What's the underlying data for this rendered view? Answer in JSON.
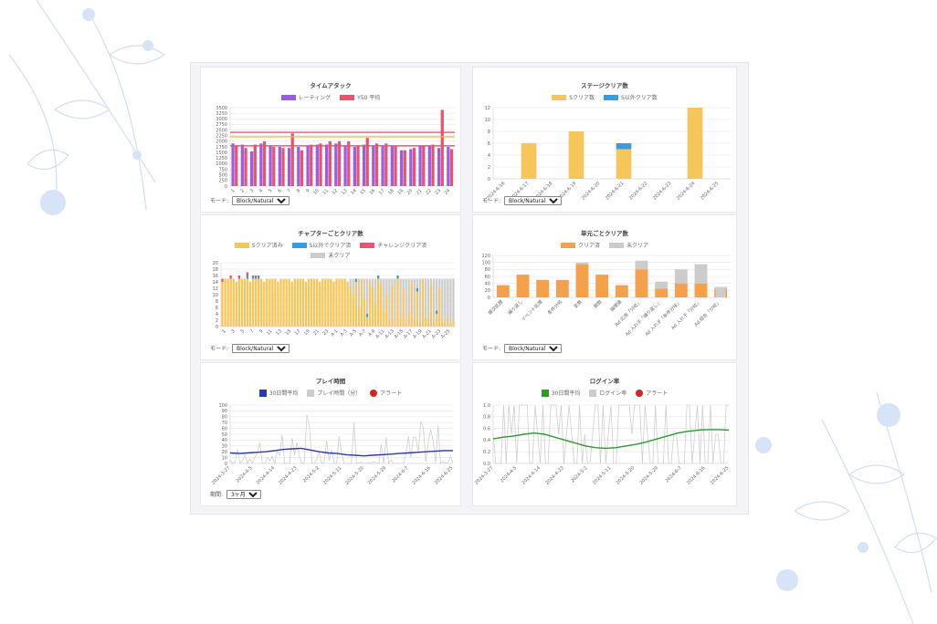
{
  "chart_data": [
    {
      "id": "time-attack",
      "type": "bar",
      "title": "タイムアタック",
      "legend": [
        {
          "name": "レーティング",
          "color": "#9b5de5"
        },
        {
          "name": "Y50 平均",
          "color": "#e8536e"
        }
      ],
      "categories": [
        "1",
        "2",
        "3",
        "4",
        "5",
        "6",
        "7",
        "8",
        "9",
        "10",
        "11",
        "12",
        "13",
        "14",
        "15",
        "16",
        "17",
        "18",
        "19",
        "20",
        "21",
        "22",
        "23",
        "24"
      ],
      "series": [
        {
          "name": "レーティング",
          "values": [
            1900,
            1850,
            1550,
            1900,
            1800,
            1750,
            1700,
            1750,
            1800,
            1850,
            1850,
            1900,
            1800,
            1750,
            1850,
            1800,
            1800,
            1800,
            1600,
            1650,
            1800,
            1800,
            1700,
            1750
          ]
        },
        {
          "name": "Y50 平均",
          "values": [
            1800,
            1700,
            1850,
            2000,
            1750,
            1700,
            2350,
            1600,
            1850,
            1900,
            2000,
            2000,
            2000,
            1800,
            2150,
            1900,
            1900,
            1800,
            1600,
            1700,
            1800,
            1850,
            3400,
            1650
          ]
        }
      ],
      "reference_lines": [
        2400,
        2200,
        1800
      ],
      "ylim": [
        0,
        3500
      ],
      "yticks": [
        0,
        250,
        500,
        750,
        1000,
        1250,
        1500,
        1750,
        2000,
        2250,
        2500,
        2750,
        3000,
        3250,
        3500
      ],
      "mode_label": "モード",
      "mode_value": "Block/Natural"
    },
    {
      "id": "stage-clear",
      "type": "bar",
      "title": "ステージクリア数",
      "legend": [
        {
          "name": "Sクリア数",
          "color": "#f7c65a"
        },
        {
          "name": "S以外クリア数",
          "color": "#3b9be0"
        }
      ],
      "categories": [
        "2024-6-16",
        "2024-6-17",
        "2024-6-18",
        "2024-6-19",
        "2024-6-20",
        "2024-6-21",
        "2024-6-22",
        "2024-6-23",
        "2024-6-24",
        "2024-6-25"
      ],
      "series": [
        {
          "name": "Sクリア数",
          "values": [
            0,
            6,
            0,
            8,
            0,
            5,
            0,
            0,
            12,
            0
          ]
        },
        {
          "name": "S以外クリア数",
          "values": [
            0,
            0,
            0,
            0,
            0,
            1,
            0,
            0,
            0,
            0
          ]
        }
      ],
      "ylim": [
        0,
        12
      ],
      "yticks": [
        0,
        2,
        4,
        6,
        8,
        10,
        12
      ],
      "mode_label": "モード",
      "mode_value": "Block/Natural"
    },
    {
      "id": "chapter-clear",
      "type": "bar",
      "title": "チャプターごとクリア数",
      "legend": [
        {
          "name": "Sクリア済み",
          "color": "#f7c65a"
        },
        {
          "name": "S以外でクリア済",
          "color": "#3b9be0"
        },
        {
          "name": "チャレンジクリア済",
          "color": "#e8536e"
        },
        {
          "name": "未クリア",
          "color": "#cccccc"
        }
      ],
      "xticks": [
        "1",
        "3",
        "5",
        "7",
        "9",
        "11",
        "13",
        "15",
        "17",
        "19",
        "21",
        "23",
        "A-1",
        "A-3",
        "A-5",
        "A-7",
        "A-9",
        "A-11",
        "A-13",
        "A-15",
        "A-17",
        "A-19",
        "A-21",
        "A-23",
        "A-25"
      ],
      "ylim": [
        0,
        20
      ],
      "yticks": [
        0,
        2,
        4,
        6,
        8,
        10,
        12,
        14,
        16,
        18,
        20
      ],
      "mode_label": "モード",
      "mode_value": "Block/Natural"
    },
    {
      "id": "unit-clear",
      "type": "bar",
      "title": "単元ごとクリア数",
      "legend": [
        {
          "name": "クリア済",
          "color": "#f5a04a"
        },
        {
          "name": "未クリア",
          "color": "#cccccc"
        }
      ],
      "categories": [
        "順次処理",
        "繰り返し",
        "イベント処理",
        "条件分岐",
        "変数",
        "関数",
        "論理値",
        "Ad 応用「分岐」",
        "Ad 入れ子「繰り返し」",
        "Ad 入れ子「条件分岐」",
        "Ad 入れ子「分岐」",
        "Ad 総合「分岐」"
      ],
      "series": [
        {
          "name": "クリア済",
          "values": [
            35,
            65,
            50,
            50,
            95,
            65,
            35,
            80,
            25,
            40,
            40,
            25
          ]
        },
        {
          "name": "未クリア",
          "values": [
            0,
            0,
            0,
            0,
            5,
            0,
            0,
            25,
            20,
            40,
            55,
            5
          ]
        }
      ],
      "extra_gray": [
        0,
        0,
        0,
        0,
        0,
        0,
        0,
        0,
        0,
        0,
        0,
        30
      ],
      "ylim": [
        0,
        120
      ],
      "yticks": [
        0,
        20,
        40,
        60,
        80,
        100,
        120
      ],
      "mode_label": "モード",
      "mode_value": "Block/Natural"
    },
    {
      "id": "play-time",
      "type": "line",
      "title": "プレイ時間",
      "legend": [
        {
          "name": "30日間平均",
          "color": "#2b3aa8"
        },
        {
          "name": "プレイ時間（分）",
          "color": "#cccccc"
        },
        {
          "name": "アラート",
          "color": "#d62424"
        }
      ],
      "xticks": [
        "2024-3-27",
        "2024-4-5",
        "2024-4-14",
        "2024-4-23",
        "2024-5-2",
        "2024-5-11",
        "2024-5-20",
        "2024-5-29",
        "2024-6-7",
        "2024-6-16",
        "2024-6-25"
      ],
      "series": [
        {
          "name": "30日間平均",
          "values": [
            18,
            17,
            18,
            19,
            20,
            22,
            24,
            25,
            26,
            23,
            20,
            18,
            17,
            15,
            14,
            13,
            14,
            15,
            16,
            17,
            18,
            19,
            20,
            21,
            22,
            22
          ]
        }
      ],
      "ylim": [
        0,
        100
      ],
      "yticks": [
        0,
        10,
        20,
        30,
        40,
        50,
        60,
        70,
        80,
        90,
        100
      ],
      "period_label": "期間",
      "period_value": "3ヶ月"
    },
    {
      "id": "login-rate",
      "type": "line",
      "title": "ログイン率",
      "legend": [
        {
          "name": "30日間平均",
          "color": "#2e9a2e"
        },
        {
          "name": "ログイン率",
          "color": "#cccccc"
        },
        {
          "name": "アラート",
          "color": "#d62424"
        }
      ],
      "xticks": [
        "2024-3-27",
        "2024-4-5",
        "2024-4-14",
        "2024-4-23",
        "2024-5-2",
        "2024-5-11",
        "2024-5-20",
        "2024-5-29",
        "2024-6-7",
        "2024-6-16",
        "2024-6-25"
      ],
      "series": [
        {
          "name": "30日間平均",
          "values": [
            0.42,
            0.45,
            0.47,
            0.5,
            0.52,
            0.5,
            0.45,
            0.4,
            0.35,
            0.3,
            0.27,
            0.26,
            0.27,
            0.3,
            0.33,
            0.37,
            0.42,
            0.47,
            0.52,
            0.55,
            0.57,
            0.58,
            0.58,
            0.57
          ]
        }
      ],
      "ylim": [
        0,
        1.0
      ],
      "yticks": [
        0,
        0.2,
        0.4,
        0.6,
        0.8,
        1.0
      ]
    }
  ]
}
